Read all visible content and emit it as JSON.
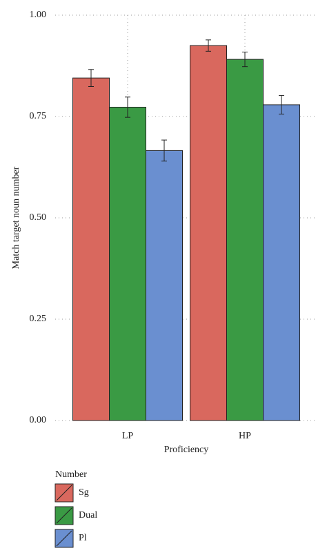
{
  "chart_data": {
    "type": "bar",
    "x_label": "Proficiency",
    "y_label": "Match target noun number",
    "categories": [
      "LP",
      "HP"
    ],
    "series": [
      {
        "name": "Sg",
        "color": "#d9685e",
        "values": [
          0.845,
          0.925
        ],
        "errors": [
          0.021,
          0.014
        ]
      },
      {
        "name": "Dual",
        "color": "#3a9a44",
        "values": [
          0.773,
          0.891
        ],
        "errors": [
          0.025,
          0.018
        ]
      },
      {
        "name": "Pl",
        "color": "#6a8fd0",
        "values": [
          0.666,
          0.779
        ],
        "errors": [
          0.026,
          0.023
        ]
      }
    ],
    "ylim": [
      0,
      1
    ],
    "yticks": [
      {
        "value": 0,
        "label": "0.00"
      },
      {
        "value": 0.25,
        "label": "0.25"
      },
      {
        "value": 0.5,
        "label": "0.50"
      },
      {
        "value": 0.75,
        "label": "0.75"
      },
      {
        "value": 1,
        "label": "1.00"
      }
    ],
    "grid": true,
    "legend_title": "Number",
    "legend_position": "bottom"
  }
}
